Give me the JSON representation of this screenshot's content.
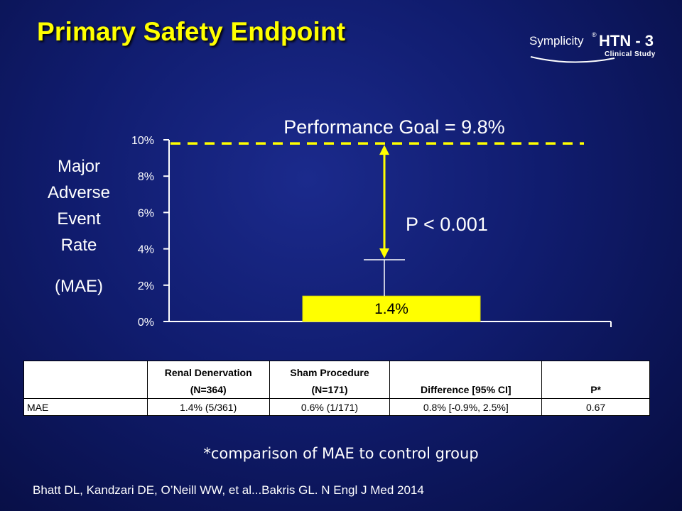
{
  "slide": {
    "title": "Primary Safety Endpoint",
    "logo": {
      "brand": "Symplicity",
      "trademark": "®",
      "product": "HTN - 3",
      "subtitle": "Clinical Study"
    },
    "y_label_lines": [
      "Major",
      "Adverse",
      "Event",
      "Rate"
    ],
    "y_label_abbrev": "(MAE)",
    "footnote": "*comparison of MAE to control group",
    "citation": "Bhatt DL, Kandzari DE, O’Neill WW, et al...Bakris GL. N Engl J Med 2014"
  },
  "colors": {
    "title": "#ffff00",
    "bar": "#ffff00",
    "reference_line": "#ffff00",
    "arrow": "#ffff00",
    "axis": "#ffffff",
    "background": "#101c6e"
  },
  "chart_data": {
    "type": "bar",
    "categories": [
      ""
    ],
    "values": [
      1.4
    ],
    "data_labels": [
      "1.4%"
    ],
    "error_bar_upper": [
      3.4
    ],
    "ylim": [
      0,
      10
    ],
    "yticks": [
      0,
      2,
      4,
      6,
      8,
      10
    ],
    "ytick_labels": [
      "0%",
      "2%",
      "4%",
      "6%",
      "8%",
      "10%"
    ],
    "xlabel": "",
    "ylabel": "Major Adverse Event Rate (MAE)",
    "reference_line": {
      "value": 9.8,
      "label": "Performance Goal = 9.8%",
      "style": "dashed"
    },
    "annotation": "P < 0.001",
    "grid": false
  },
  "table": {
    "headers": [
      {
        "line1": "",
        "line2": ""
      },
      {
        "line1": "Renal Denervation",
        "line2": "(N=364)"
      },
      {
        "line1": "Sham Procedure",
        "line2": "(N=171)"
      },
      {
        "line1": "",
        "line2": "Difference [95% CI]"
      },
      {
        "line1": "",
        "line2": "P*"
      }
    ],
    "rows": [
      [
        "MAE",
        "1.4% (5/361)",
        "0.6% (1/171)",
        "0.8% [-0.9%, 2.5%]",
        "0.67"
      ]
    ]
  }
}
